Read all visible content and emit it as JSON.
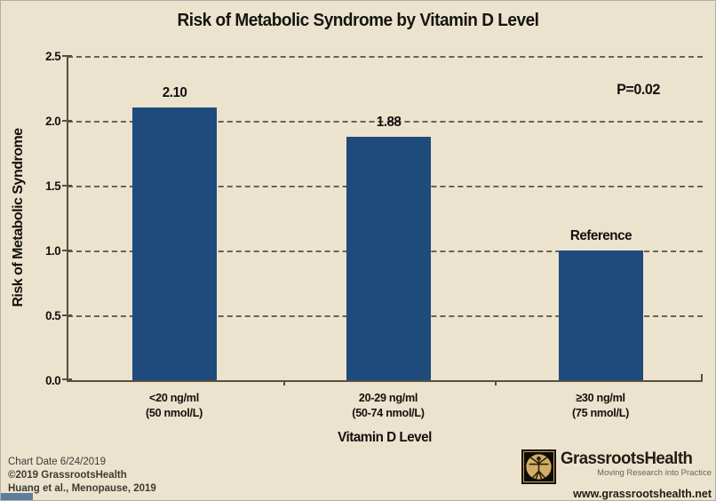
{
  "title": "Risk of Metabolic Syndrome by Vitamin D Level",
  "annotation": "P=0.02",
  "y_axis": {
    "label": "Risk of Metabolic Syndrome",
    "ticks": [
      "2.5",
      "2.0",
      "1.5",
      "1.0",
      "0.5",
      "0.0"
    ]
  },
  "x_axis": {
    "label": "Vitamin D Level"
  },
  "bars": [
    {
      "value_label": "2.10",
      "cat_line1": "<20 ng/ml",
      "cat_line2": "(50 nmol/L)"
    },
    {
      "value_label": "1.88",
      "cat_line1": "20-29 ng/ml",
      "cat_line2": "(50-74 nmol/L)"
    },
    {
      "value_label": "Reference",
      "cat_line1": "≥30 ng/ml",
      "cat_line2": "(75 nmol/L)"
    }
  ],
  "chart_data": {
    "type": "bar",
    "title": "Risk of Metabolic Syndrome by Vitamin D Level",
    "categories": [
      "<20 ng/ml (50 nmol/L)",
      "20-29 ng/ml (50-74 nmol/L)",
      "≥30 ng/ml (75 nmol/L)"
    ],
    "values": [
      2.1,
      1.88,
      1.0
    ],
    "bar_labels": [
      "2.10",
      "1.88",
      "Reference"
    ],
    "xlabel": "Vitamin D Level",
    "ylabel": "Risk of Metabolic Syndrome",
    "ylim": [
      0,
      2.5
    ],
    "ytick_step": 0.5,
    "annotation": "P=0.02",
    "grid": "horizontal-dashed",
    "legend": "none"
  },
  "footer": {
    "chart_date": "Chart Date 6/24/2019",
    "copyright": "©2019 GrassrootsHealth",
    "citation": "Huang et al., Menopause, 2019"
  },
  "logo": {
    "name": "GrassrootsHealth",
    "tagline": "Moving Research into Practice",
    "url": "www.grassrootshealth.net"
  },
  "colors": {
    "background": "#ece3cf",
    "bar": "#1f4a7c",
    "axis": "#56503d",
    "grid": "#6a6253",
    "logo_gold": "#d2ad66",
    "logo_square": "#0e0b06"
  }
}
